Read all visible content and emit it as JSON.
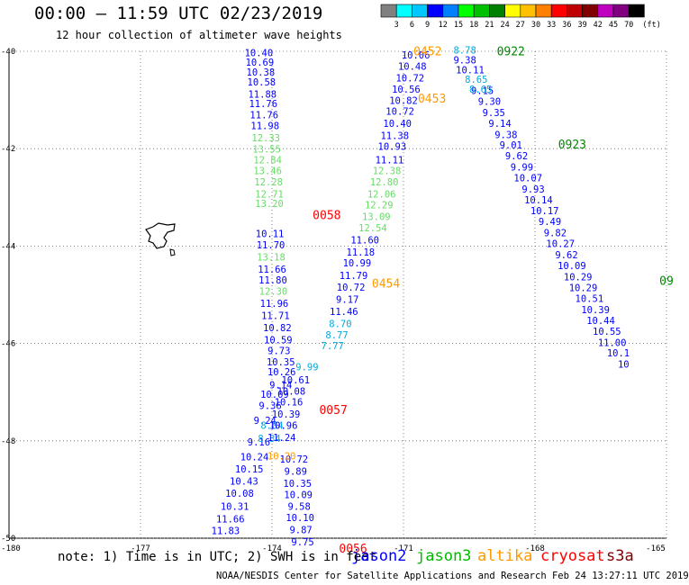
{
  "header": {
    "title": "00:00 – 11:59 UTC 02/23/2019",
    "subtitle": "12 hour collection of altimeter wave heights"
  },
  "colorbar": {
    "values": [
      "3",
      "6",
      "9",
      "12",
      "15",
      "18",
      "21",
      "24",
      "27",
      "30",
      "33",
      "36",
      "39",
      "42",
      "45",
      "70"
    ],
    "unit": "(ft)",
    "colors": [
      "#808080",
      "#00ffff",
      "#00c8ff",
      "#0000ff",
      "#0080ff",
      "#00ff00",
      "#00c000",
      "#008000",
      "#ffff00",
      "#ffc000",
      "#ff8000",
      "#ff0000",
      "#c00000",
      "#800000",
      "#c000c0",
      "#800080",
      "#000000"
    ]
  },
  "axes": {
    "x_labels": [
      "-180",
      "-177",
      "-174",
      "-171",
      "-168",
      "-165"
    ],
    "y_labels": [
      "-40",
      "-42",
      "-44",
      "-46",
      "-48",
      "-50"
    ]
  },
  "satellite_colors": {
    "jason2": "#0000ff",
    "jason3": "#00bb00",
    "altika": "#ff9900",
    "cryosat": "#ff0000",
    "s3a": "#800000",
    "light_green": "#66dd66",
    "light_blue": "#00aadd"
  },
  "tracks": [
    {
      "sat": "jason2",
      "color": "#0000ff",
      "points": [
        {
          "lon": -174.3,
          "lat": -40.1,
          "v": "10.40"
        },
        {
          "lon": -174.28,
          "lat": -40.3,
          "v": "10.69"
        },
        {
          "lon": -174.26,
          "lat": -40.5,
          "v": "10.38"
        },
        {
          "lon": -174.24,
          "lat": -40.7,
          "v": "10.58"
        },
        {
          "lon": -174.22,
          "lat": -40.95,
          "v": "11.88"
        },
        {
          "lon": -174.2,
          "lat": -41.15,
          "v": "11.76"
        },
        {
          "lon": -174.18,
          "lat": -41.38,
          "v": "11.76"
        },
        {
          "lon": -174.16,
          "lat": -41.6,
          "v": "11.98"
        },
        {
          "lon": -174.05,
          "lat": -43.82,
          "v": "10.11"
        },
        {
          "lon": -174.03,
          "lat": -44.05,
          "v": "11.70"
        },
        {
          "lon": -174.0,
          "lat": -44.55,
          "v": "11.66"
        },
        {
          "lon": -173.98,
          "lat": -44.77,
          "v": "11.80"
        },
        {
          "lon": -173.95,
          "lat": -45.25,
          "v": "11.96"
        },
        {
          "lon": -173.92,
          "lat": -45.5,
          "v": "11.71"
        },
        {
          "lon": -173.88,
          "lat": -45.75,
          "v": "10.82"
        },
        {
          "lon": -173.86,
          "lat": -46.0,
          "v": "10.59"
        },
        {
          "lon": -173.84,
          "lat": -46.22,
          "v": "9.73"
        },
        {
          "lon": -173.8,
          "lat": -46.45,
          "v": "10.35"
        },
        {
          "lon": -173.78,
          "lat": -46.65,
          "v": "10.26"
        },
        {
          "lon": -173.8,
          "lat": -46.92,
          "v": "9.14"
        },
        {
          "lon": -173.94,
          "lat": -47.12,
          "v": "10.09"
        },
        {
          "lon": -174.04,
          "lat": -47.35,
          "v": "9.36"
        },
        {
          "lon": -174.16,
          "lat": -47.65,
          "v": "9.24"
        },
        {
          "lon": -174.3,
          "lat": -48.1,
          "v": "9.16"
        },
        {
          "lon": -174.4,
          "lat": -48.4,
          "v": "10.24"
        },
        {
          "lon": -174.52,
          "lat": -48.65,
          "v": "10.15"
        },
        {
          "lon": -174.64,
          "lat": -48.9,
          "v": "10.43"
        },
        {
          "lon": -174.74,
          "lat": -49.15,
          "v": "10.08"
        },
        {
          "lon": -174.85,
          "lat": -49.42,
          "v": "10.31"
        },
        {
          "lon": -174.95,
          "lat": -49.68,
          "v": "11.66"
        },
        {
          "lon": -175.06,
          "lat": -49.92,
          "v": "11.83"
        }
      ]
    },
    {
      "sat": "jason3",
      "color": "#66dd66",
      "points": [
        {
          "lon": -174.14,
          "lat": -41.85,
          "v": "12.33"
        },
        {
          "lon": -174.12,
          "lat": -42.08,
          "v": "13.55"
        },
        {
          "lon": -174.1,
          "lat": -42.3,
          "v": "12.84"
        },
        {
          "lon": -174.1,
          "lat": -42.52,
          "v": "13.46"
        },
        {
          "lon": -174.08,
          "lat": -42.75,
          "v": "12.28"
        },
        {
          "lon": -174.06,
          "lat": -43.0,
          "v": "12.71"
        },
        {
          "lon": -174.06,
          "lat": -43.2,
          "v": "13.20"
        },
        {
          "lon": -174.02,
          "lat": -44.3,
          "v": "13.18"
        },
        {
          "lon": -173.97,
          "lat": -45.0,
          "v": "12.30"
        }
      ]
    },
    {
      "sat": "jason2",
      "color": "#00aadd",
      "points": [
        {
          "lon": -174.06,
          "lat": -48.02,
          "v": "8.34"
        },
        {
          "lon": -174.0,
          "lat": -47.75,
          "v": "8.84"
        }
      ]
    },
    {
      "sat": "jason2b",
      "color": "#0000ff",
      "points": [
        {
          "lon": -170.72,
          "lat": -40.15,
          "v": "10.06"
        },
        {
          "lon": -170.8,
          "lat": -40.38,
          "v": "10.48"
        },
        {
          "lon": -170.85,
          "lat": -40.62,
          "v": "10.72"
        },
        {
          "lon": -170.94,
          "lat": -40.85,
          "v": "10.56"
        },
        {
          "lon": -171.0,
          "lat": -41.08,
          "v": "10.82"
        },
        {
          "lon": -171.08,
          "lat": -41.3,
          "v": "10.72"
        },
        {
          "lon": -171.14,
          "lat": -41.55,
          "v": "10.40"
        },
        {
          "lon": -171.2,
          "lat": -41.8,
          "v": "11.38"
        },
        {
          "lon": -171.26,
          "lat": -42.02,
          "v": "10.93"
        },
        {
          "lon": -171.32,
          "lat": -42.3,
          "v": "11.11"
        },
        {
          "lon": -171.88,
          "lat": -43.95,
          "v": "11.60"
        },
        {
          "lon": -171.98,
          "lat": -44.2,
          "v": "11.18"
        },
        {
          "lon": -172.06,
          "lat": -44.42,
          "v": "10.99"
        },
        {
          "lon": -172.14,
          "lat": -44.68,
          "v": "11.79"
        },
        {
          "lon": -172.2,
          "lat": -44.92,
          "v": "10.72"
        },
        {
          "lon": -172.28,
          "lat": -45.17,
          "v": "9.17"
        },
        {
          "lon": -172.36,
          "lat": -45.42,
          "v": "11.46"
        },
        {
          "lon": -173.46,
          "lat": -46.82,
          "v": "10.61"
        },
        {
          "lon": -173.56,
          "lat": -47.05,
          "v": "10.08"
        },
        {
          "lon": -173.62,
          "lat": -47.27,
          "v": "10.16"
        },
        {
          "lon": -173.68,
          "lat": -47.52,
          "v": "10.39"
        },
        {
          "lon": -173.74,
          "lat": -47.75,
          "v": "10.96"
        },
        {
          "lon": -173.78,
          "lat": -48.0,
          "v": "11.24"
        },
        {
          "lon": -173.5,
          "lat": -48.45,
          "v": "10.72"
        },
        {
          "lon": -173.46,
          "lat": -48.7,
          "v": "9.89"
        },
        {
          "lon": -173.42,
          "lat": -48.95,
          "v": "10.35"
        },
        {
          "lon": -173.4,
          "lat": -49.18,
          "v": "10.09"
        },
        {
          "lon": -173.38,
          "lat": -49.42,
          "v": "9.58"
        },
        {
          "lon": -173.36,
          "lat": -49.65,
          "v": "10.10"
        },
        {
          "lon": -173.34,
          "lat": -49.9,
          "v": "9.87"
        },
        {
          "lon": -173.3,
          "lat": -50.15,
          "v": "9.75"
        }
      ]
    },
    {
      "sat": "jason3b",
      "color": "#66dd66",
      "points": [
        {
          "lon": -171.38,
          "lat": -42.52,
          "v": "12.38"
        },
        {
          "lon": -171.44,
          "lat": -42.75,
          "v": "12.80"
        },
        {
          "lon": -171.5,
          "lat": -43.0,
          "v": "12.06"
        },
        {
          "lon": -171.56,
          "lat": -43.23,
          "v": "12.29"
        },
        {
          "lon": -171.62,
          "lat": -43.47,
          "v": "13.09"
        },
        {
          "lon": -171.7,
          "lat": -43.7,
          "v": "12.54"
        }
      ]
    },
    {
      "sat": "jason2c",
      "color": "#00aadd",
      "points": [
        {
          "lon": -172.44,
          "lat": -45.67,
          "v": "8.70"
        },
        {
          "lon": -172.52,
          "lat": -45.9,
          "v": "8.77"
        },
        {
          "lon": -172.62,
          "lat": -46.12,
          "v": "7.77"
        },
        {
          "lon": -173.2,
          "lat": -46.55,
          "v": "9.99"
        }
      ]
    },
    {
      "sat": "jason2d",
      "color": "#0000ff",
      "points": [
        {
          "lon": -169.6,
          "lat": -40.25,
          "v": "9.38"
        },
        {
          "lon": -169.48,
          "lat": -40.45,
          "v": "10.11"
        },
        {
          "lon": -169.2,
          "lat": -40.88,
          "v": "9.15"
        },
        {
          "lon": -169.04,
          "lat": -41.1,
          "v": "9.30"
        },
        {
          "lon": -168.94,
          "lat": -41.33,
          "v": "9.35"
        },
        {
          "lon": -168.8,
          "lat": -41.55,
          "v": "9.14"
        },
        {
          "lon": -168.66,
          "lat": -41.78,
          "v": "9.38"
        },
        {
          "lon": -168.55,
          "lat": -42.0,
          "v": "9.01"
        },
        {
          "lon": -168.42,
          "lat": -42.22,
          "v": "9.62"
        },
        {
          "lon": -168.3,
          "lat": -42.45,
          "v": "9.99"
        },
        {
          "lon": -168.16,
          "lat": -42.67,
          "v": "10.07"
        },
        {
          "lon": -168.04,
          "lat": -42.9,
          "v": "9.93"
        },
        {
          "lon": -167.92,
          "lat": -43.12,
          "v": "10.14"
        },
        {
          "lon": -167.78,
          "lat": -43.35,
          "v": "10.17"
        },
        {
          "lon": -167.66,
          "lat": -43.57,
          "v": "9.49"
        },
        {
          "lon": -167.54,
          "lat": -43.8,
          "v": "9.82"
        },
        {
          "lon": -167.42,
          "lat": -44.02,
          "v": "10.27"
        },
        {
          "lon": -167.28,
          "lat": -44.25,
          "v": "9.62"
        },
        {
          "lon": -167.16,
          "lat": -44.47,
          "v": "10.09"
        },
        {
          "lon": -167.02,
          "lat": -44.7,
          "v": "10.29"
        },
        {
          "lon": -166.9,
          "lat": -44.93,
          "v": "10.29"
        },
        {
          "lon": -166.76,
          "lat": -45.15,
          "v": "10.51"
        },
        {
          "lon": -166.62,
          "lat": -45.38,
          "v": "10.39"
        },
        {
          "lon": -166.5,
          "lat": -45.6,
          "v": "10.44"
        },
        {
          "lon": -166.36,
          "lat": -45.82,
          "v": "10.55"
        },
        {
          "lon": -166.24,
          "lat": -46.05,
          "v": "11.00"
        },
        {
          "lon": -166.1,
          "lat": -46.27,
          "v": "10.1"
        },
        {
          "lon": -165.98,
          "lat": -46.5,
          "v": "10"
        }
      ]
    },
    {
      "sat": "jason2e",
      "color": "#00aadd",
      "points": [
        {
          "lon": -169.6,
          "lat": -40.05,
          "v": "8.78"
        },
        {
          "lon": -169.34,
          "lat": -40.65,
          "v": "8.65"
        },
        {
          "lon": -169.24,
          "lat": -40.85,
          "v": "8.65"
        }
      ]
    },
    {
      "sat": "altika",
      "color": "#ff9900",
      "points": [
        {
          "lon": -173.78,
          "lat": -48.38,
          "v": "10.20"
        }
      ]
    }
  ],
  "time_labels": [
    {
      "lon": -170.45,
      "lat": -40.08,
      "t": "0452",
      "color": "#ff9900"
    },
    {
      "lon": -168.55,
      "lat": -40.08,
      "t": "0922",
      "color": "#008800"
    },
    {
      "lon": -170.35,
      "lat": -41.05,
      "t": "0453",
      "color": "#ff9900"
    },
    {
      "lon": -167.15,
      "lat": -42.0,
      "t": "0923",
      "color": "#008800"
    },
    {
      "lon": -172.75,
      "lat": -43.45,
      "t": "0058",
      "color": "#ff0000"
    },
    {
      "lon": -171.4,
      "lat": -44.85,
      "t": "0454",
      "color": "#ff9900"
    },
    {
      "lon": -172.6,
      "lat": -47.45,
      "t": "0057",
      "color": "#ff0000"
    },
    {
      "lon": -172.15,
      "lat": -50.3,
      "t": "0056",
      "color": "#ff0000"
    },
    {
      "lon": -165.0,
      "lat": -44.8,
      "t": "09",
      "color": "#008800"
    }
  ],
  "footer": {
    "note": "note: 1) Time is in UTC; 2) SWH is in feet",
    "legend": [
      "jason2",
      "jason3",
      "altika",
      "cryosat",
      "s3a"
    ],
    "credit": "NOAA/NESDIS Center for Satellite Applications and Research   Feb 24 13:27:11 UTC 2019"
  }
}
